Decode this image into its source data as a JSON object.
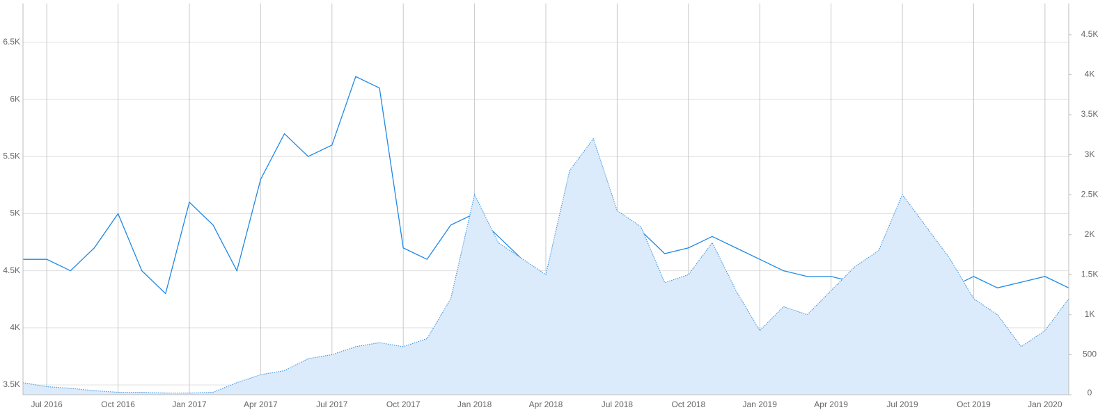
{
  "chart_data": {
    "type": "line",
    "x": [
      "2016-06",
      "2016-07",
      "2016-08",
      "2016-09",
      "2016-10",
      "2016-11",
      "2016-12",
      "2017-01",
      "2017-02",
      "2017-03",
      "2017-04",
      "2017-05",
      "2017-06",
      "2017-07",
      "2017-08",
      "2017-09",
      "2017-10",
      "2017-11",
      "2017-12",
      "2018-01",
      "2018-02",
      "2018-03",
      "2018-04",
      "2018-05",
      "2018-06",
      "2018-07",
      "2018-08",
      "2018-09",
      "2018-10",
      "2018-11",
      "2018-12",
      "2019-01",
      "2019-02",
      "2019-03",
      "2019-04",
      "2019-05",
      "2019-06",
      "2019-07",
      "2019-08",
      "2019-09",
      "2019-10",
      "2019-11",
      "2019-12",
      "2020-01",
      "2020-02"
    ],
    "series": [
      {
        "color": "#1e88e5",
        "values": [
          4600,
          4600,
          4500,
          4700,
          5000,
          4500,
          4300,
          5100,
          4900,
          4500,
          5300,
          5700,
          5500,
          5600,
          6200,
          6100,
          4700,
          4600,
          4900,
          5000,
          4800,
          4600,
          4400,
          4600,
          4750,
          4800,
          4850,
          4650,
          4700,
          4800,
          4700,
          4600,
          4500,
          4450,
          4450,
          4400,
          4450,
          4350,
          4300,
          4350,
          4450,
          4350,
          4400,
          4450,
          4350
        ]
      },
      {
        "color": "#4a9be0",
        "fill": "#dcebfb",
        "axis": "y2",
        "values": [
          150,
          100,
          80,
          50,
          30,
          30,
          20,
          20,
          30,
          150,
          250,
          300,
          450,
          500,
          600,
          650,
          600,
          700,
          1200,
          2500,
          1900,
          1700,
          1500,
          2800,
          3200,
          2300,
          2100,
          1400,
          1500,
          1900,
          1300,
          800,
          1100,
          1000,
          1300,
          1600,
          1800,
          2500,
          2100,
          1700,
          1200,
          1000,
          600,
          800,
          1200
        ]
      }
    ],
    "xlim": [
      "2016-06",
      "2020-02"
    ],
    "xticks": [
      {
        "value": "2016-07",
        "label": "Jul 2016"
      },
      {
        "value": "2016-10",
        "label": "Oct 2016"
      },
      {
        "value": "2017-01",
        "label": "Jan 2017"
      },
      {
        "value": "2017-04",
        "label": "Apr 2017"
      },
      {
        "value": "2017-07",
        "label": "Jul 2017"
      },
      {
        "value": "2017-10",
        "label": "Oct 2017"
      },
      {
        "value": "2018-01",
        "label": "Jan 2018"
      },
      {
        "value": "2018-04",
        "label": "Apr 2018"
      },
      {
        "value": "2018-07",
        "label": "Jul 2018"
      },
      {
        "value": "2018-10",
        "label": "Oct 2018"
      },
      {
        "value": "2019-01",
        "label": "Jan 2019"
      },
      {
        "value": "2019-04",
        "label": "Apr 2019"
      },
      {
        "value": "2019-07",
        "label": "Jul 2019"
      },
      {
        "value": "2019-10",
        "label": "Oct 2019"
      },
      {
        "value": "2020-01",
        "label": "Jan 2020"
      }
    ],
    "ylim": [
      3415,
      6840
    ],
    "yticks": [
      {
        "value": 3500,
        "label": "3.5K"
      },
      {
        "value": 4000,
        "label": "4K"
      },
      {
        "value": 4500,
        "label": "4.5K"
      },
      {
        "value": 5000,
        "label": "5K"
      },
      {
        "value": 5500,
        "label": "5.5K"
      },
      {
        "value": 6000,
        "label": "6K"
      },
      {
        "value": 6500,
        "label": "6.5K"
      }
    ],
    "y2lim": [
      0,
      4890
    ],
    "y2ticks": [
      0,
      500,
      {
        "value": 1000,
        "label": "1K"
      },
      {
        "value": 1500,
        "label": "1.5K"
      },
      {
        "value": 2000,
        "label": "2K"
      },
      {
        "value": 2500,
        "label": "2.5K"
      },
      {
        "value": 3000,
        "label": "3K"
      },
      {
        "value": 3500,
        "label": "3.5K"
      },
      {
        "value": 4000,
        "label": "4K"
      },
      {
        "value": 4500,
        "label": "4.5K"
      }
    ],
    "grid": true
  }
}
